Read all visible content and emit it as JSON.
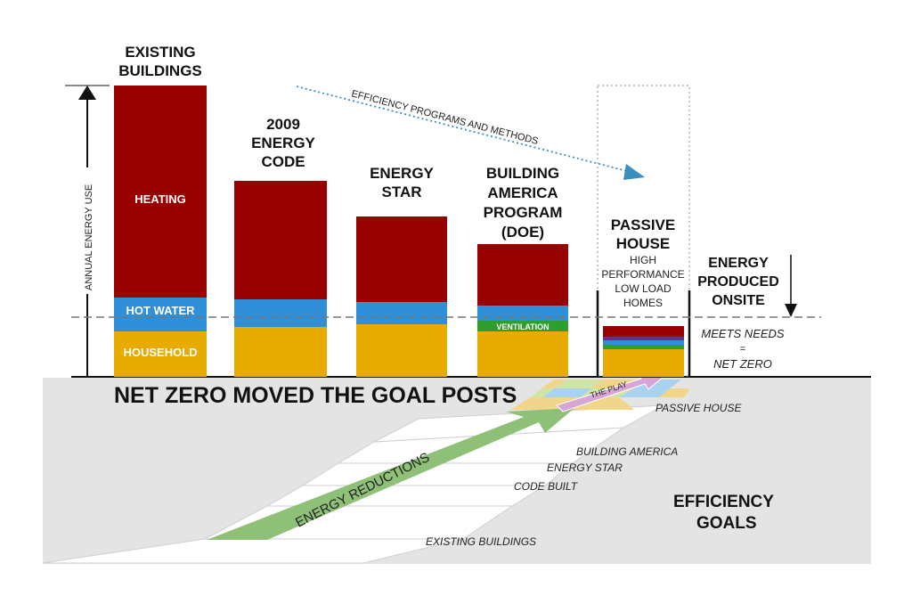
{
  "colors": {
    "heating": "#990000",
    "hot_water": "#2f8fd8",
    "household": "#e8ac00",
    "ventilation": "#2e9e2e",
    "passive_house_top": "#6b2c8a",
    "goal_text": "#2e8b2e",
    "ground": "#e4e4e4",
    "arrow": "#8fc077",
    "dotted_arrow": "#3a8fbf"
  },
  "bars": [
    {
      "title": [
        "EXISTING",
        "BUILDINGS"
      ],
      "labels": {
        "heating": "HEATING",
        "hot_water": "HOT WATER",
        "household": "HOUSEHOLD"
      }
    },
    {
      "title": [
        "2009",
        "ENERGY",
        "CODE"
      ],
      "labels": {}
    },
    {
      "title": [
        "ENERGY",
        "STAR"
      ],
      "labels": {}
    },
    {
      "title": [
        "BUILDING",
        "AMERICA",
        "PROGRAM",
        "(DOE)"
      ],
      "labels": {
        "ventilation": "VENTILATION"
      }
    }
  ],
  "passive_house": {
    "title": [
      "PASSIVE",
      "HOUSE"
    ],
    "subtitle": [
      "HIGH",
      "PERFORMANCE",
      "LOW LOAD",
      "HOMES"
    ]
  },
  "energy_produced": [
    "ENERGY",
    "PRODUCED",
    "ONSITE"
  ],
  "meets_needs": [
    "MEETS NEEDS",
    "=",
    "NET ZERO"
  ],
  "axis_label": "ANNUAL ENERGY USE",
  "efficiency_arrow_label": "EFFICIENCY PROGRAMS AND METHODS",
  "headline": "NET ZERO MOVED THE GOAL POSTS",
  "field": {
    "arrow_label": "ENERGY REDUCTIONS",
    "play_label": "THE PLAY",
    "yard_labels": [
      "PASSIVE HOUSE",
      "BUILDING AMERICA",
      "ENERGY STAR",
      "CODE BUILT",
      "EXISTING BUILDINGS"
    ],
    "goals": [
      "EFFICIENCY",
      "GOALS"
    ]
  }
}
